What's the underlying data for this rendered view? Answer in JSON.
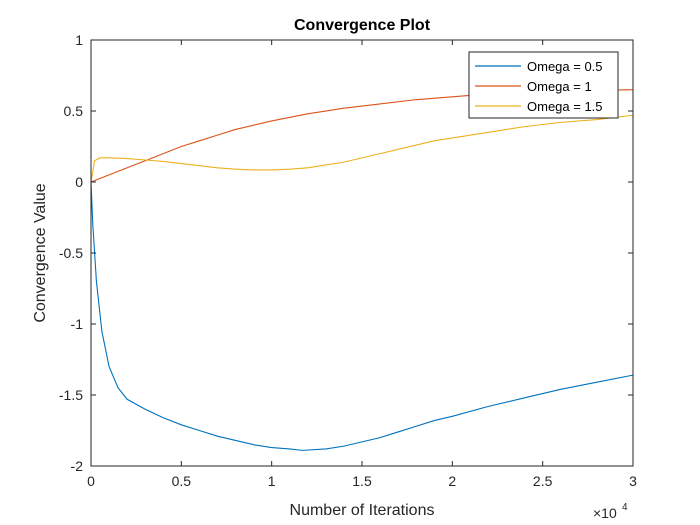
{
  "chart_data": {
    "type": "line",
    "title": "Convergence Plot",
    "xlabel": "Number of Iterations",
    "ylabel": "Convergence Value",
    "xlim": [
      0,
      30000
    ],
    "ylim": [
      -2,
      1
    ],
    "x_ticks": [
      0,
      5000,
      10000,
      15000,
      20000,
      25000,
      30000
    ],
    "x_tick_labels": [
      "0",
      "0.5",
      "1",
      "1.5",
      "2",
      "2.5",
      "3"
    ],
    "x_exponent": {
      "base": "×10",
      "power": "4"
    },
    "y_ticks": [
      1,
      0.5,
      0,
      -0.5,
      -1,
      -1.5,
      -2
    ],
    "y_tick_labels": [
      "1",
      "0.5",
      "0",
      "-0.5",
      "-1",
      "-1.5",
      "-2"
    ],
    "grid": false,
    "legend_position": "top-right",
    "series": [
      {
        "name": "Omega = 0.5",
        "color": "#0072bd",
        "points": [
          [
            0,
            0
          ],
          [
            100,
            -0.3
          ],
          [
            300,
            -0.7
          ],
          [
            600,
            -1.05
          ],
          [
            1000,
            -1.3
          ],
          [
            1500,
            -1.45
          ],
          [
            2000,
            -1.53
          ],
          [
            3000,
            -1.6
          ],
          [
            4000,
            -1.66
          ],
          [
            5000,
            -1.71
          ],
          [
            6000,
            -1.75
          ],
          [
            7000,
            -1.79
          ],
          [
            8000,
            -1.82
          ],
          [
            9000,
            -1.85
          ],
          [
            10000,
            -1.87
          ],
          [
            11000,
            -1.88
          ],
          [
            11700,
            -1.89
          ],
          [
            13000,
            -1.88
          ],
          [
            14000,
            -1.86
          ],
          [
            15000,
            -1.83
          ],
          [
            16000,
            -1.8
          ],
          [
            17000,
            -1.76
          ],
          [
            18000,
            -1.72
          ],
          [
            19000,
            -1.68
          ],
          [
            20000,
            -1.65
          ],
          [
            22000,
            -1.58
          ],
          [
            24000,
            -1.52
          ],
          [
            26000,
            -1.46
          ],
          [
            28000,
            -1.41
          ],
          [
            30000,
            -1.36
          ]
        ]
      },
      {
        "name": "Omega = 1",
        "color": "#d95319",
        "points": [
          [
            0,
            0
          ],
          [
            1000,
            0.05
          ],
          [
            2000,
            0.1
          ],
          [
            3000,
            0.15
          ],
          [
            4000,
            0.2
          ],
          [
            5000,
            0.25
          ],
          [
            6000,
            0.29
          ],
          [
            7000,
            0.33
          ],
          [
            8000,
            0.37
          ],
          [
            9000,
            0.4
          ],
          [
            10000,
            0.43
          ],
          [
            12000,
            0.48
          ],
          [
            14000,
            0.52
          ],
          [
            16000,
            0.55
          ],
          [
            18000,
            0.58
          ],
          [
            20000,
            0.6
          ],
          [
            22000,
            0.62
          ],
          [
            24000,
            0.63
          ],
          [
            26000,
            0.64
          ],
          [
            28000,
            0.645
          ],
          [
            30000,
            0.65
          ]
        ]
      },
      {
        "name": "Omega = 1.5",
        "color": "#edb120",
        "points": [
          [
            0,
            0
          ],
          [
            200,
            0.15
          ],
          [
            500,
            0.17
          ],
          [
            1000,
            0.17
          ],
          [
            2000,
            0.165
          ],
          [
            3000,
            0.155
          ],
          [
            4000,
            0.145
          ],
          [
            5000,
            0.13
          ],
          [
            6000,
            0.115
          ],
          [
            7000,
            0.1
          ],
          [
            8000,
            0.09
          ],
          [
            9000,
            0.085
          ],
          [
            10000,
            0.085
          ],
          [
            11000,
            0.09
          ],
          [
            12000,
            0.1
          ],
          [
            13000,
            0.12
          ],
          [
            14000,
            0.14
          ],
          [
            15000,
            0.17
          ],
          [
            16000,
            0.2
          ],
          [
            17000,
            0.23
          ],
          [
            18000,
            0.26
          ],
          [
            19000,
            0.29
          ],
          [
            20000,
            0.31
          ],
          [
            22000,
            0.35
          ],
          [
            24000,
            0.39
          ],
          [
            26000,
            0.42
          ],
          [
            28000,
            0.44
          ],
          [
            30000,
            0.47
          ]
        ]
      }
    ]
  }
}
